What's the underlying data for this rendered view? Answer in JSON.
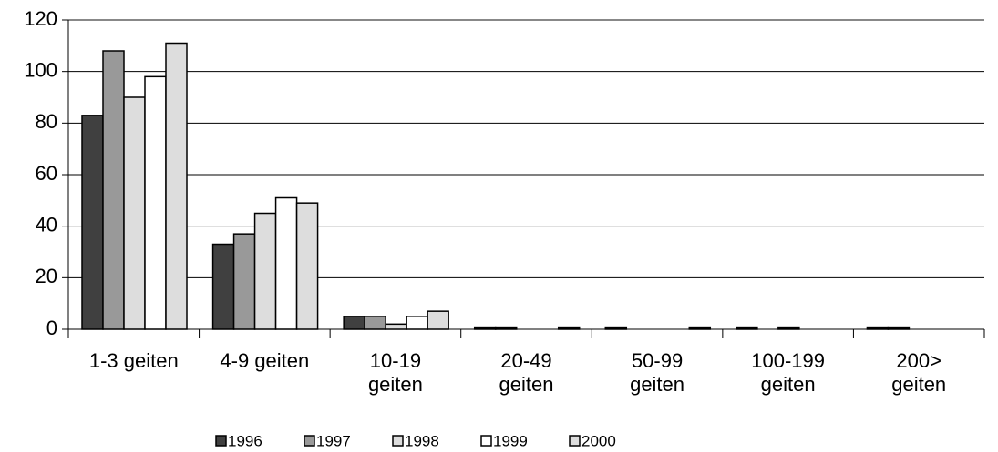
{
  "chart_data": {
    "type": "bar",
    "categories": [
      "1-3 geiten",
      "4-9 geiten",
      "10-19 geiten",
      "20-49 geiten",
      "50-99 geiten",
      "100-199 geiten",
      "200> geiten"
    ],
    "series": [
      {
        "name": "1996",
        "color": "#404040",
        "values": [
          83,
          33,
          5,
          0.5,
          0.5,
          0.5,
          0.5
        ]
      },
      {
        "name": "1997",
        "color": "#999999",
        "values": [
          108,
          37,
          5,
          0.5,
          0,
          0,
          0.5
        ]
      },
      {
        "name": "1998",
        "color": "#dddddd",
        "values": [
          90,
          45,
          2,
          0,
          0,
          0.5,
          0
        ]
      },
      {
        "name": "1999",
        "color": "#ffffff",
        "values": [
          98,
          51,
          5,
          0,
          0,
          0,
          0
        ]
      },
      {
        "name": "2000",
        "color": "#dddddd",
        "values": [
          111,
          49,
          7,
          0.5,
          0.5,
          0,
          0
        ]
      }
    ],
    "ylim": [
      0,
      120
    ],
    "yticks": [
      0,
      20,
      40,
      60,
      80,
      100,
      120
    ],
    "grid": true
  }
}
